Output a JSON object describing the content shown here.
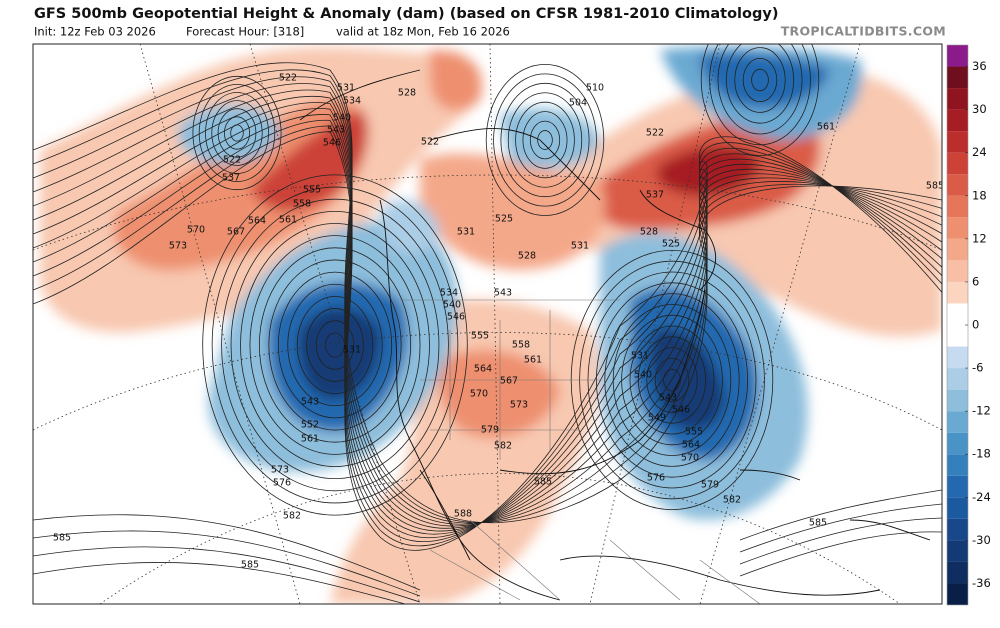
{
  "header": {
    "title": "GFS 500mb Geopotential Height & Anomaly (dam) (based on CFSR 1981-2010 Climatology)",
    "init": "Init: 12z Feb 03 2026",
    "forecast_hour": "Forecast Hour: [318]",
    "valid": "valid at 18z Mon, Feb 16 2026",
    "site": "TROPICALTIDBITS.COM"
  },
  "colorbar": {
    "lim": [
      -39,
      39
    ],
    "ticks": [
      36,
      30,
      24,
      18,
      12,
      6,
      0,
      -6,
      -12,
      -18,
      -24,
      -30,
      -36
    ],
    "colors": [
      "#0a1f47",
      "#0f2d60",
      "#143a75",
      "#18488a",
      "#1c5aa0",
      "#2469b0",
      "#3380bd",
      "#4a93c6",
      "#6aa9d2",
      "#8dbedc",
      "#abcde6",
      "#c6dbef",
      "#ffffff",
      "#ffffff",
      "#fbd5c0",
      "#f8bfa6",
      "#f4a88a",
      "#ee9070",
      "#e5765a",
      "#da5b47",
      "#cc4237",
      "#bb2e2c",
      "#a61d24",
      "#8f1420",
      "#6f0f1e",
      "#8b1a8a"
    ]
  },
  "contour_labels": [
    "522",
    "531",
    "528",
    "510",
    "504",
    "522",
    "561",
    "534",
    "540",
    "543",
    "546",
    "522",
    "522",
    "537",
    "555",
    "558",
    "561",
    "564",
    "567",
    "570",
    "573",
    "537",
    "531",
    "525",
    "528",
    "531",
    "528",
    "525",
    "534",
    "540",
    "546",
    "543",
    "531",
    "543",
    "552",
    "561",
    "555",
    "558",
    "561",
    "564",
    "567",
    "570",
    "573",
    "579",
    "582",
    "585",
    "588",
    "573",
    "576",
    "582",
    "585",
    "585",
    "531",
    "540",
    "543",
    "546",
    "549",
    "555",
    "564",
    "570",
    "576",
    "579",
    "582",
    "585",
    "585"
  ]
}
